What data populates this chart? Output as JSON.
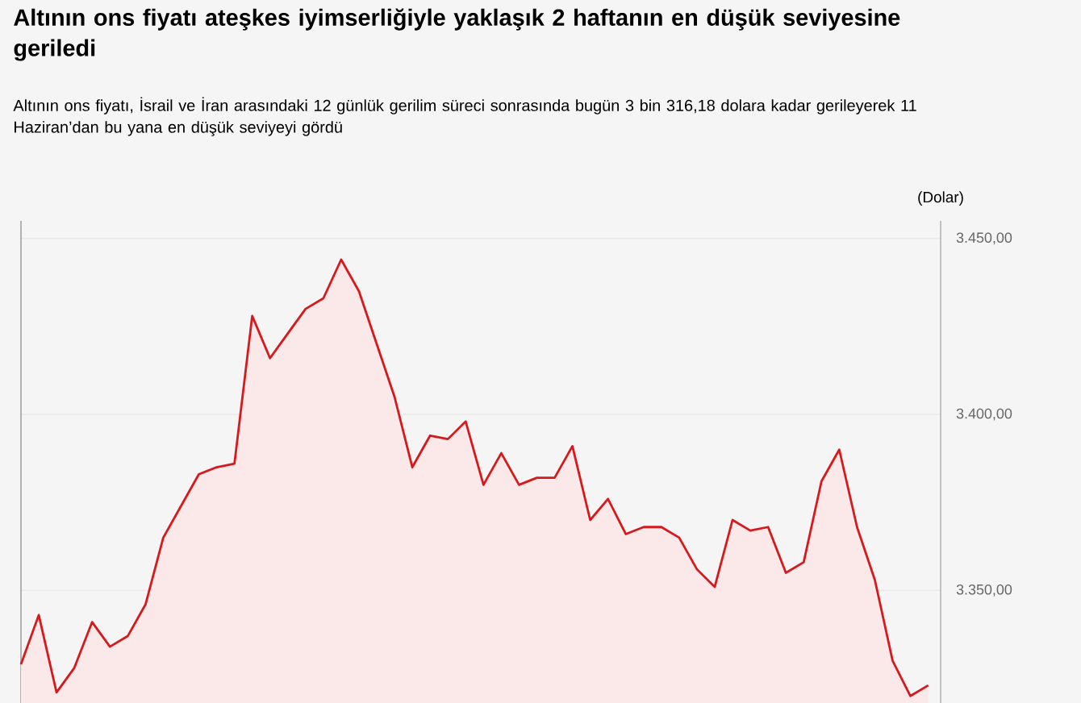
{
  "chart_data": {
    "type": "area",
    "title": "Altının ons fiyatı ateşkes iyimserliğiyle yaklaşık 2 haftanın en düşük seviyesine geriledi",
    "subtitle": "Altının ons fiyatı, İsrail ve İran arasındaki 12 günlük gerilim süreci sonrasında bugün 3 bin 316,18 dolara kadar gerileyerek 11 Haziran’dan bu yana en düşük seviyeyi gördü",
    "ylabel": "(Dolar)",
    "categories": [
      null,
      null,
      null,
      null,
      null,
      null,
      null,
      null,
      null,
      null,
      null,
      null,
      null,
      null,
      null,
      null,
      null,
      null,
      null,
      null,
      null,
      null,
      null,
      null,
      null,
      null,
      null,
      null,
      null,
      null,
      null,
      null,
      null,
      null,
      null,
      null,
      null,
      null,
      null,
      null,
      null,
      null,
      null,
      null,
      null,
      null,
      null,
      null,
      null,
      null,
      null,
      null
    ],
    "values": [
      3329,
      3343,
      3321,
      3328,
      3341,
      3334,
      3337,
      3346,
      3365,
      3374,
      3383,
      3385,
      3386,
      3428,
      3416,
      3423,
      3430,
      3433,
      3444,
      3435,
      3420,
      3405,
      3385,
      3394,
      3393,
      3398,
      3380,
      3389,
      3380,
      3382,
      3382,
      3391,
      3370,
      3376,
      3366,
      3368,
      3368,
      3365,
      3356,
      3351,
      3370,
      3367,
      3368,
      3355,
      3358,
      3381,
      3390,
      3368,
      3353,
      3330,
      3320,
      3323
    ],
    "color": "#d7191c",
    "ylim": [
      3318,
      3455
    ],
    "yticks": [
      {
        "value": 3350,
        "label": "3.350,00"
      },
      {
        "value": 3400,
        "label": "3.400,00"
      },
      {
        "value": 3450,
        "label": "3.450,00"
      }
    ],
    "grid": "y",
    "tick_labels": "y"
  }
}
